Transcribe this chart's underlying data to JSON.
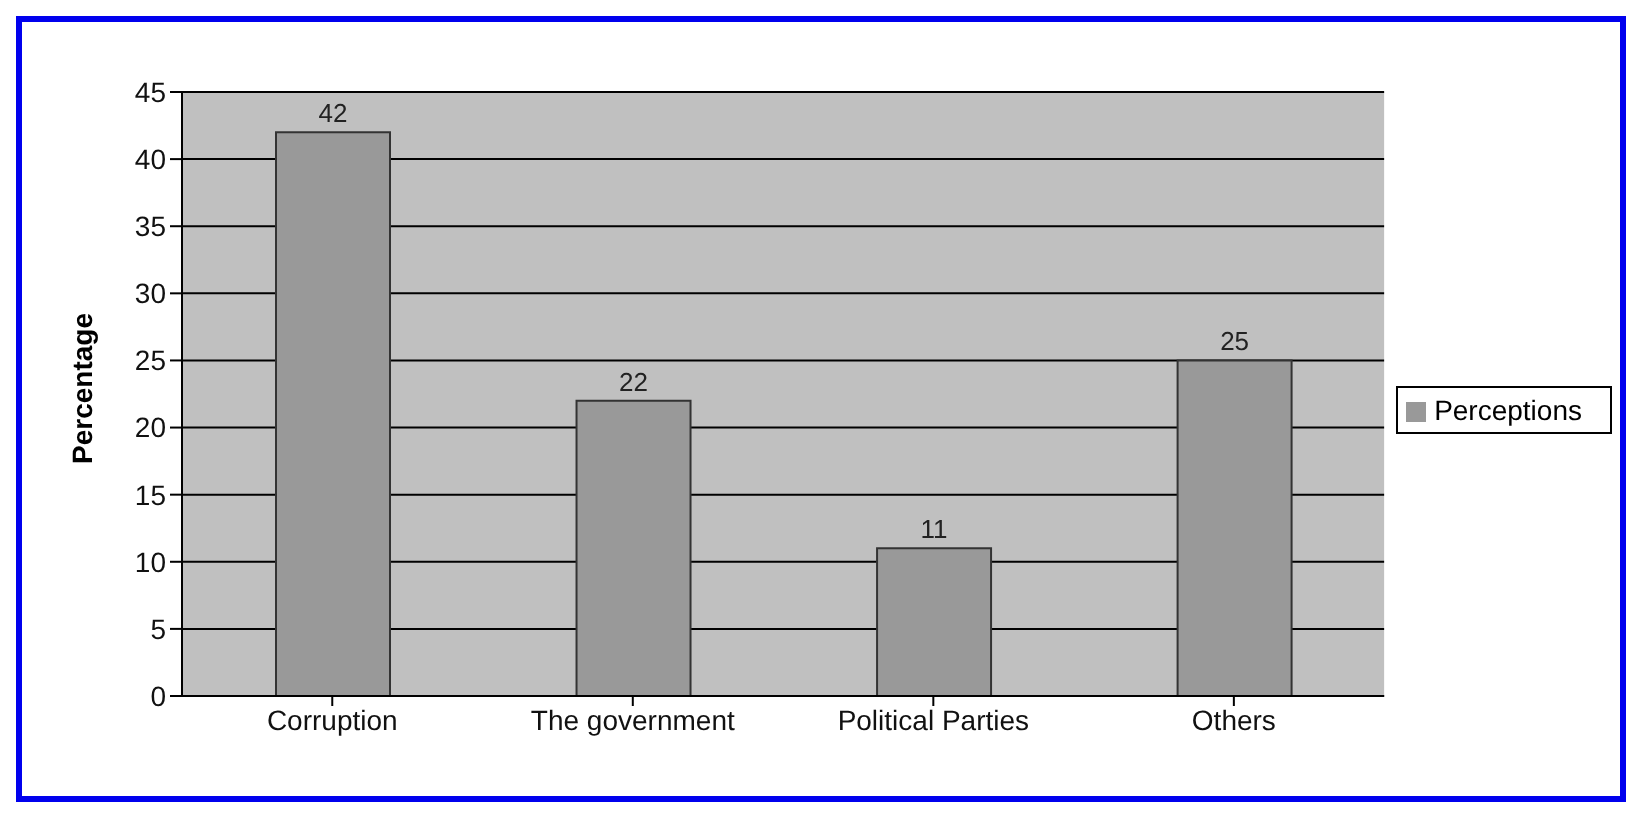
{
  "chart_data": {
    "type": "bar",
    "ylabel": "Percentage",
    "categories": [
      "Corruption",
      "The government",
      "Political Parties",
      "Others"
    ],
    "series": [
      {
        "name": "Perceptions",
        "color": "#999999",
        "values": [
          42,
          22,
          11,
          25
        ]
      }
    ],
    "ylim": [
      0,
      45
    ],
    "yticks": [
      0,
      5,
      10,
      15,
      20,
      25,
      30,
      35,
      40,
      45
    ],
    "grid": "y",
    "legend": "right",
    "data_labels": true
  }
}
